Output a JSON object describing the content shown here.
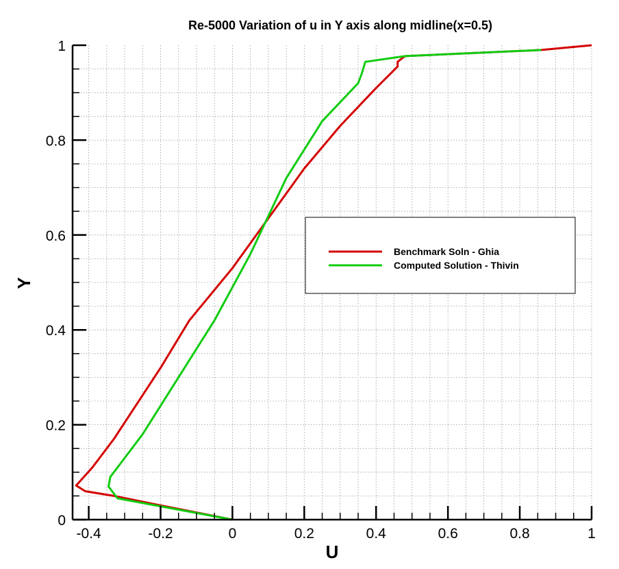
{
  "chart_data": {
    "type": "line",
    "title": "Re-5000 Variation of u in Y axis along midline(x=0.5)",
    "xlabel": "U",
    "ylabel": "Y",
    "xlim": [
      -0.445,
      1.0
    ],
    "ylim": [
      0,
      1
    ],
    "xticks": [
      -0.4,
      -0.2,
      0,
      0.2,
      0.4,
      0.6,
      0.8,
      1
    ],
    "xtick_labels": [
      "-0.4",
      "-0.2",
      "0",
      "0.2",
      "0.4",
      "0.6",
      "0.8",
      "1"
    ],
    "yticks": [
      0,
      0.2,
      0.4,
      0.6,
      0.8,
      1
    ],
    "ytick_labels": [
      "0",
      "0.2",
      "0.4",
      "0.6",
      "0.8",
      "1"
    ],
    "grid": true,
    "legend_position": "center-right",
    "series": [
      {
        "name": "Benchmark Soln - Ghia",
        "color": "#d40000",
        "x": [
          0,
          -0.2,
          -0.33,
          -0.41,
          -0.435,
          -0.39,
          -0.33,
          -0.2,
          -0.12,
          0,
          0.2,
          0.3,
          0.4,
          0.46,
          0.46,
          0.48,
          0.86,
          1
        ],
        "y": [
          0,
          0.03,
          0.05,
          0.06,
          0.072,
          0.11,
          0.17,
          0.32,
          0.42,
          0.53,
          0.74,
          0.83,
          0.91,
          0.955,
          0.965,
          0.977,
          0.99,
          1
        ]
      },
      {
        "name": "Computed Solution - Thivin",
        "color": "#11cc11",
        "x": [
          0,
          -0.2,
          -0.32,
          -0.345,
          -0.34,
          -0.31,
          -0.25,
          -0.15,
          -0.05,
          0.05,
          0.15,
          0.25,
          0.35,
          0.36,
          0.37,
          0.48,
          0.86
        ],
        "y": [
          0,
          0.028,
          0.045,
          0.07,
          0.09,
          0.12,
          0.18,
          0.3,
          0.42,
          0.56,
          0.72,
          0.84,
          0.92,
          0.94,
          0.965,
          0.977,
          0.99
        ]
      }
    ]
  }
}
